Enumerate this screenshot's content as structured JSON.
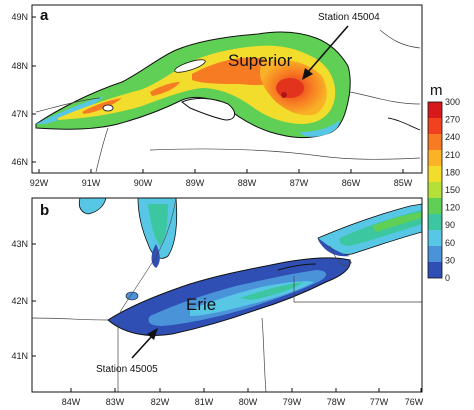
{
  "panel_a": {
    "letter": "a",
    "lake_label": "Superior",
    "station_label": "Station 45004",
    "lat_ticks": [
      "49N",
      "48N",
      "47N",
      "46N"
    ],
    "lon_ticks": [
      "92W",
      "91W",
      "90W",
      "89W",
      "88W",
      "87W",
      "86W",
      "85W"
    ]
  },
  "panel_b": {
    "letter": "b",
    "lake_label": "Erie",
    "station_label": "Station 45005",
    "lat_ticks": [
      "43N",
      "42N",
      "41N"
    ],
    "lon_ticks": [
      "84W",
      "83W",
      "82W",
      "81W",
      "80W",
      "79W",
      "78W",
      "77W",
      "76W"
    ]
  },
  "colorbar": {
    "unit": "m",
    "labels": [
      "300",
      "270",
      "240",
      "210",
      "180",
      "150",
      "120",
      "90",
      "60",
      "30",
      "0"
    ],
    "colors": [
      "#d7191c",
      "#f0421e",
      "#f77b22",
      "#fbb227",
      "#f2dc2c",
      "#b5e03a",
      "#5fcf55",
      "#3cc7a0",
      "#58c7e5",
      "#4b93d9",
      "#2f4fb5"
    ]
  }
}
